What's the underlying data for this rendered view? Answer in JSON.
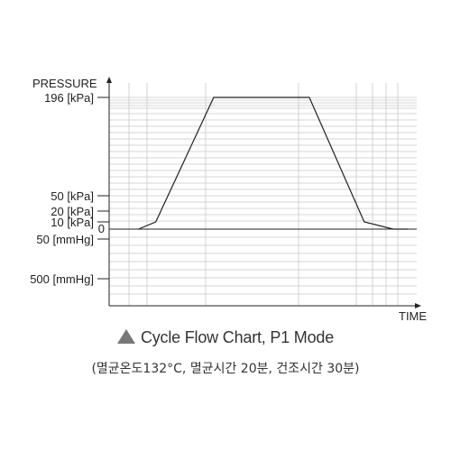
{
  "chart_data": {
    "type": "line",
    "title": "Cycle Flow Chart, P1 Mode",
    "subtitle": "(멸균온도132°C, 멸균시간 20분, 건조시간 30분)",
    "ylabel": "PRESSURE",
    "xlabel": "TIME",
    "y_tick_labels": [
      "196 [kPa]",
      "50 [kPa]",
      "20 [kPa]",
      "10 [kPa]",
      "0",
      "50 [mmHg]",
      "500 [mmHg]"
    ],
    "grid": true,
    "series": [
      {
        "points": [
          {
            "x": 0.07,
            "y": "0"
          },
          {
            "x": 0.13,
            "y": "10 [kPa]"
          },
          {
            "x": 0.33,
            "y": "196 [kPa]"
          },
          {
            "x": 0.66,
            "y": "196 [kPa]"
          },
          {
            "x": 0.85,
            "y": "10 [kPa]"
          },
          {
            "x": 0.95,
            "y": "0"
          },
          {
            "x": 1.0,
            "y": "0"
          }
        ]
      }
    ]
  }
}
